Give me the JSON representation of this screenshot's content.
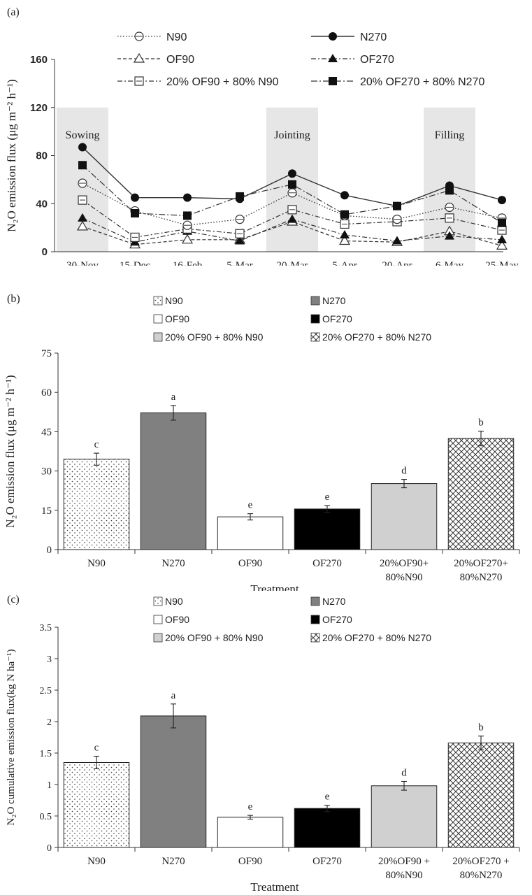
{
  "chart_data": [
    {
      "panel": "(a)",
      "type": "line",
      "ylabel": "N₂O emission flux (μg m⁻² h⁻¹)",
      "ylim": [
        0,
        160
      ],
      "yticks": [
        0,
        40,
        80,
        120,
        160
      ],
      "categories": [
        "30-Nov",
        "15-Dec",
        "16-Feb",
        "5-Mar",
        "20-Mar",
        "5-Apr",
        "20-Apr",
        "6-May",
        "25-May"
      ],
      "stages": [
        {
          "label": "Sowing",
          "from": 0,
          "to": 0
        },
        {
          "label": "Jointing",
          "from": 4,
          "to": 4
        },
        {
          "label": "Filling",
          "from": 7,
          "to": 7
        }
      ],
      "series": [
        {
          "name": "N90",
          "values": [
            57,
            34,
            22,
            27,
            49,
            30,
            27,
            37,
            28
          ]
        },
        {
          "name": "N270",
          "values": [
            87,
            45,
            45,
            44,
            65,
            47,
            38,
            55,
            43
          ]
        },
        {
          "name": "OF90",
          "values": [
            21,
            6,
            10,
            10,
            25,
            9,
            8,
            17,
            5
          ]
        },
        {
          "name": "OF270",
          "values": [
            28,
            8,
            17,
            9,
            27,
            14,
            9,
            13,
            10
          ]
        },
        {
          "name": "20% OF90 + 80% N90",
          "values": [
            43,
            12,
            19,
            15,
            35,
            23,
            25,
            28,
            18
          ]
        },
        {
          "name": "20% OF270 + 80% N270",
          "values": [
            72,
            32,
            30,
            46,
            56,
            31,
            38,
            51,
            24
          ]
        }
      ]
    },
    {
      "panel": "(b)",
      "type": "bar",
      "ylabel": "N₂O emission flux (μg m⁻² h⁻¹)",
      "xlabel": "Treatment",
      "ylim": [
        0,
        75
      ],
      "yticks": [
        0,
        15,
        30,
        45,
        60,
        75
      ],
      "categories": [
        "N90",
        "N270",
        "OF90",
        "OF270",
        "20%OF90+|80%N90",
        "20%OF270+|80%N270"
      ],
      "legend": [
        "N90",
        "N270",
        "OF90",
        "OF270",
        "20% OF90 + 80% N90",
        "20% OF270 + 80% N270"
      ],
      "values": [
        34.5,
        52.2,
        12.5,
        15.5,
        25.2,
        42.4
      ],
      "errors": [
        2.3,
        2.8,
        1.2,
        1.3,
        1.6,
        2.8
      ],
      "letters": [
        "c",
        "a",
        "e",
        "e",
        "d",
        "b"
      ]
    },
    {
      "panel": "(c)",
      "type": "bar",
      "ylabel": "N₂O cumulative emission flux(kg N ha⁻¹)",
      "xlabel": "Treatment",
      "ylim": [
        0,
        3.5
      ],
      "yticks": [
        0,
        0.5,
        1,
        1.5,
        2,
        2.5,
        3,
        3.5
      ],
      "categories": [
        "N90",
        "N270",
        "OF90",
        "OF270",
        "20%OF90 +|80%N90",
        "20%OF270 +|80%N270"
      ],
      "legend": [
        "N90",
        "N270",
        "OF90",
        "OF270",
        "20% OF90 + 80% N90",
        "20% OF270 + 80% N270"
      ],
      "values": [
        1.35,
        2.09,
        0.48,
        0.62,
        0.98,
        1.66
      ],
      "errors": [
        0.1,
        0.19,
        0.03,
        0.05,
        0.07,
        0.11
      ],
      "letters": [
        "c",
        "a",
        "e",
        "e",
        "d",
        "b"
      ]
    }
  ]
}
